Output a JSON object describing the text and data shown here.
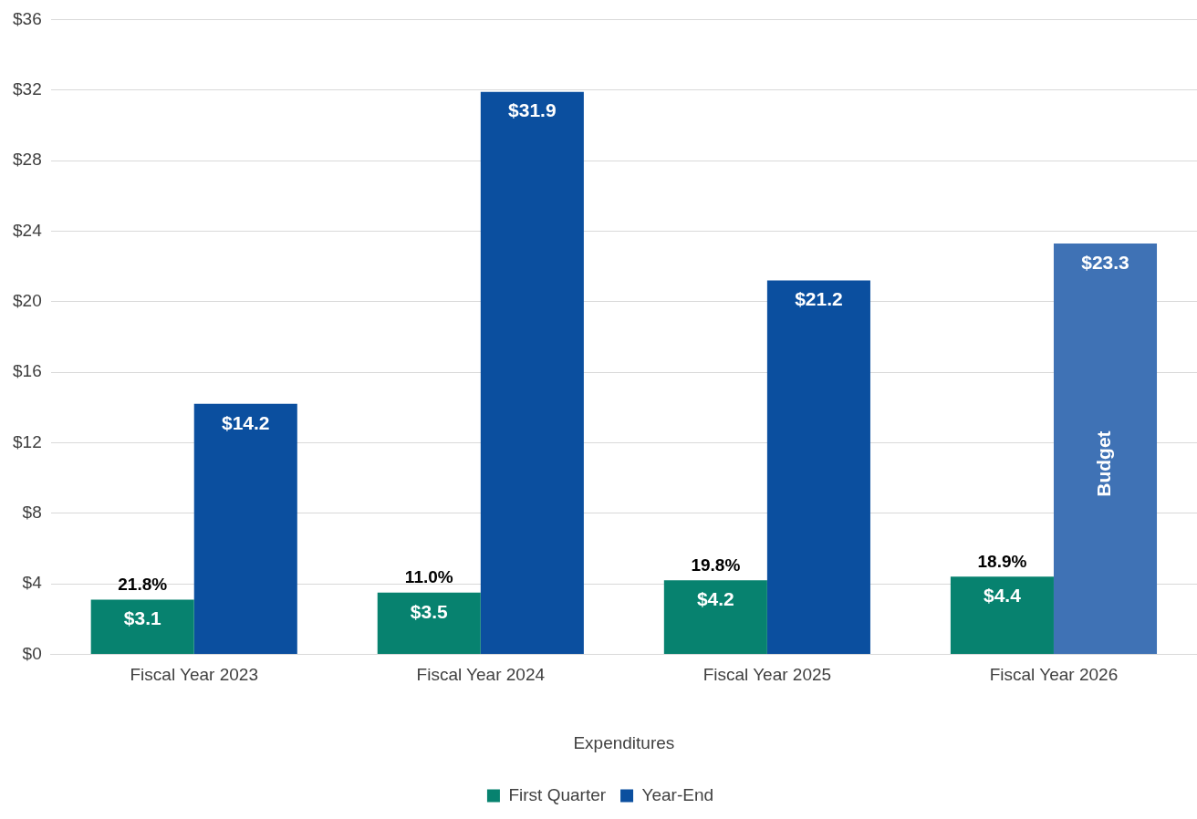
{
  "chart_data": {
    "type": "bar",
    "xlabel": "Expenditures",
    "categories": [
      "Fiscal Year 2023",
      "Fiscal Year 2024",
      "Fiscal Year 2025",
      "Fiscal Year 2026"
    ],
    "series": [
      {
        "name": "First Quarter",
        "color": "#07826f",
        "values": [
          3.1,
          3.5,
          4.2,
          4.4
        ],
        "value_labels": [
          "$3.1",
          "$3.5",
          "$4.2",
          "$4.4"
        ]
      },
      {
        "name": "Year-End",
        "color": "#0b4f9f",
        "colors": [
          "#0b4f9f",
          "#0b4f9f",
          "#0b4f9f",
          "#3f72b5"
        ],
        "values": [
          14.2,
          31.9,
          21.2,
          23.3
        ],
        "value_labels": [
          "$14.2",
          "$31.9",
          "$21.2",
          "$23.3"
        ]
      }
    ],
    "annotations": [
      {
        "text": "21.8%",
        "x": "Fiscal Year 2023",
        "y": 3.1
      },
      {
        "text": "11.0%",
        "x": "Fiscal Year 2024",
        "y": 3.5
      },
      {
        "text": "19.8%",
        "x": "Fiscal Year 2025",
        "y": 4.2
      },
      {
        "text": "18.9%",
        "x": "Fiscal Year 2026",
        "y": 4.4
      },
      {
        "text": "Budget",
        "x": "Fiscal Year 2026",
        "y": 10.8
      }
    ],
    "ylim": [
      0,
      36
    ],
    "yticks": [
      {
        "value": 0,
        "label": "$0"
      },
      {
        "value": 4,
        "label": "$4"
      },
      {
        "value": 8,
        "label": "$8"
      },
      {
        "value": 12,
        "label": "$12"
      },
      {
        "value": 16,
        "label": "$16"
      },
      {
        "value": 20,
        "label": "$20"
      },
      {
        "value": 24,
        "label": "$24"
      },
      {
        "value": 28,
        "label": "$28"
      },
      {
        "value": 32,
        "label": "$32"
      },
      {
        "value": 36,
        "label": "$36"
      }
    ],
    "grid": "y",
    "legend": "bottom"
  }
}
